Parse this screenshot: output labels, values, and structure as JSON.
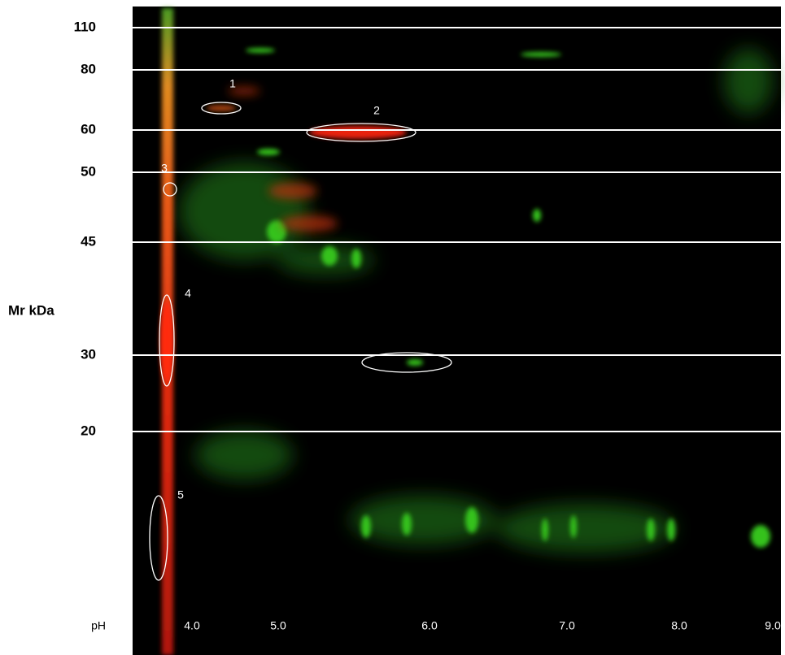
{
  "axis_title": "Mr kDa",
  "y_labels": [
    "110",
    "80",
    "60",
    "50",
    "45",
    "30",
    "20"
  ],
  "x_title": "pH",
  "x_labels": [
    "4.0",
    "5.0",
    "6.0",
    "7.0",
    "8.0",
    "9.0"
  ],
  "spots": [
    "1",
    "2",
    "3",
    "4",
    "5"
  ]
}
